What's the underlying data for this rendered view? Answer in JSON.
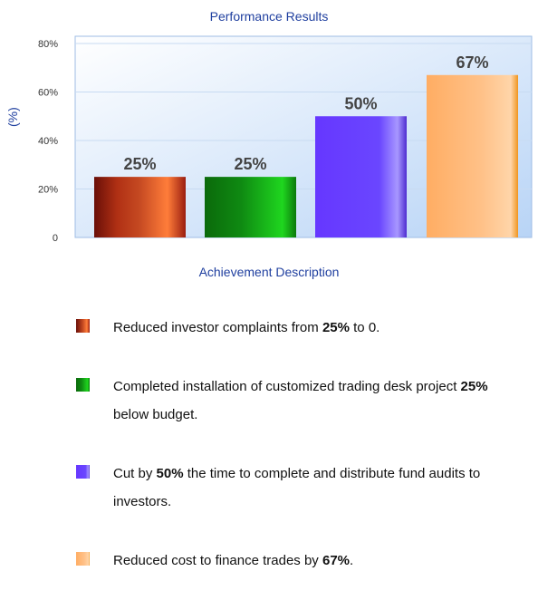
{
  "chart_data": {
    "type": "bar",
    "title": "Performance Results",
    "ylabel": "(%)",
    "xlabel": "Achievement Description",
    "ylim": [
      0,
      80
    ],
    "yticks": [
      "0",
      "20%",
      "40%",
      "60%",
      "80%"
    ],
    "grid": true,
    "values": [
      25,
      25,
      50,
      67
    ],
    "data_labels": [
      "25%",
      "25%",
      "50%",
      "67%"
    ],
    "colors": [
      "#a0281a",
      "#139a13",
      "#6a46ff",
      "#ffb070"
    ]
  },
  "legend": [
    {
      "before": "Reduced investor complaints from ",
      "bold": "25%",
      "after": " to 0."
    },
    {
      "before": "Completed installation of customized trading desk project ",
      "bold": "25%",
      "after": " below budget."
    },
    {
      "before": "Cut by ",
      "bold": "50%",
      "after": " the time to complete and distribute fund audits to investors."
    },
    {
      "before": "Reduced cost to finance trades by ",
      "bold": "67%",
      "after": "."
    }
  ]
}
